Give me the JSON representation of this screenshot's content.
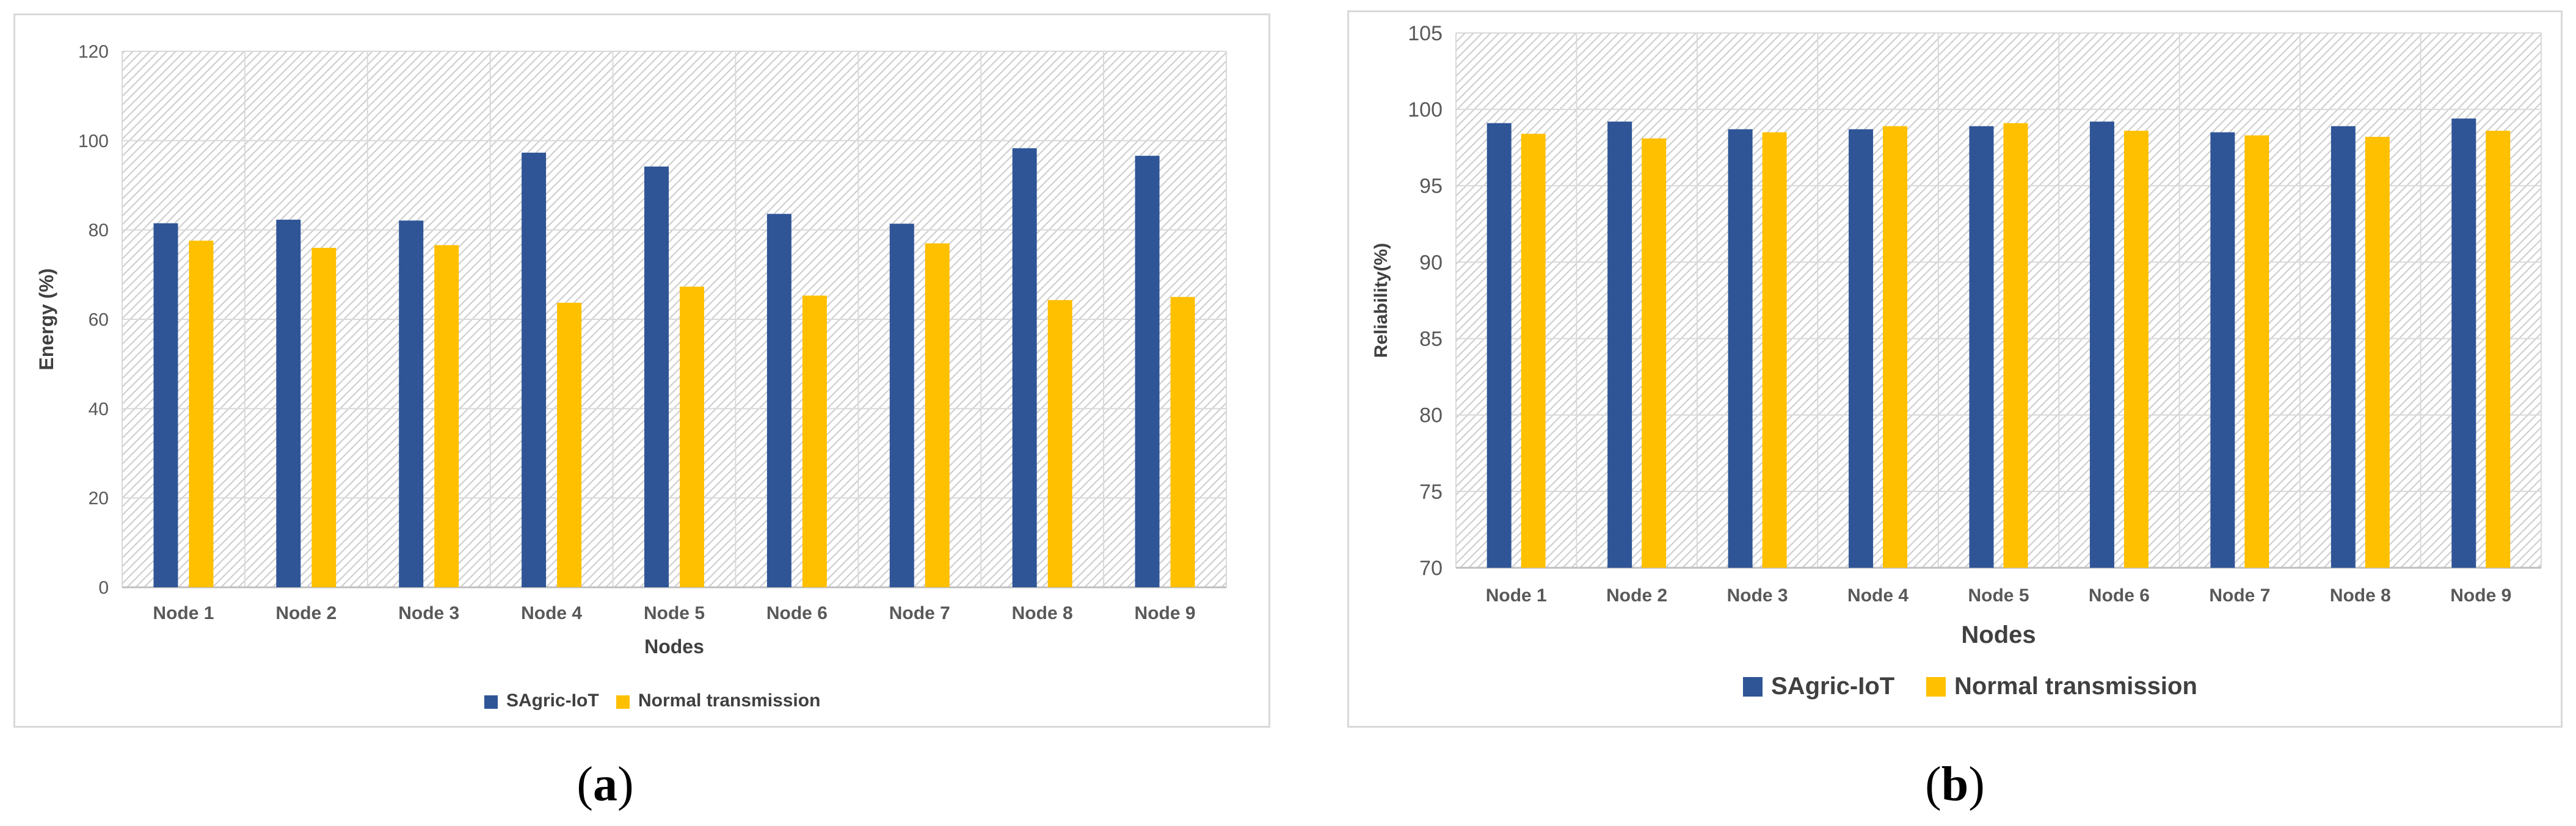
{
  "captions": {
    "a": "a",
    "b": "b"
  },
  "colors": {
    "series1": "#2F5597",
    "series2": "#FFC000",
    "grid": "#d9d9d9",
    "hatch": "#c8c8c8"
  },
  "chart_data": [
    {
      "type": "bar",
      "categories": [
        "Node 1",
        "Node 2",
        "Node 3",
        "Node 4",
        "Node 5",
        "Node 6",
        "Node 7",
        "Node 8",
        "Node 9"
      ],
      "series": [
        {
          "name": "SAgric-IoT",
          "values": [
            81.5,
            82.3,
            82.1,
            97.3,
            94.2,
            83.6,
            81.4,
            98.3,
            96.6
          ]
        },
        {
          "name": "Normal transmission",
          "values": [
            77.6,
            76.0,
            76.6,
            63.7,
            67.3,
            65.3,
            77.0,
            64.3,
            65.0
          ]
        }
      ],
      "title": "",
      "xlabel": "Nodes",
      "ylabel": "Energy (%)",
      "ylim": [
        0,
        120
      ],
      "yticks": [
        "0",
        "20",
        "40",
        "60",
        "80",
        "100",
        "120"
      ],
      "legend": "bottom-center"
    },
    {
      "type": "bar",
      "categories": [
        "Node 1",
        "Node 2",
        "Node 3",
        "Node 4",
        "Node 5",
        "Node 6",
        "Node 7",
        "Node 8",
        "Node 9"
      ],
      "series": [
        {
          "name": "SAgric-IoT",
          "values": [
            99.1,
            99.2,
            98.7,
            98.7,
            98.9,
            99.2,
            98.5,
            98.9,
            99.4
          ]
        },
        {
          "name": "Normal transmission",
          "values": [
            98.4,
            98.1,
            98.5,
            98.9,
            99.1,
            98.6,
            98.3,
            98.2,
            98.6
          ]
        }
      ],
      "title": "",
      "xlabel": "Nodes",
      "ylabel": "Reliability(%)",
      "ylim": [
        70,
        105
      ],
      "yticks": [
        "70",
        "75",
        "80",
        "85",
        "90",
        "95",
        "100",
        "105"
      ],
      "legend": "bottom-center"
    }
  ]
}
